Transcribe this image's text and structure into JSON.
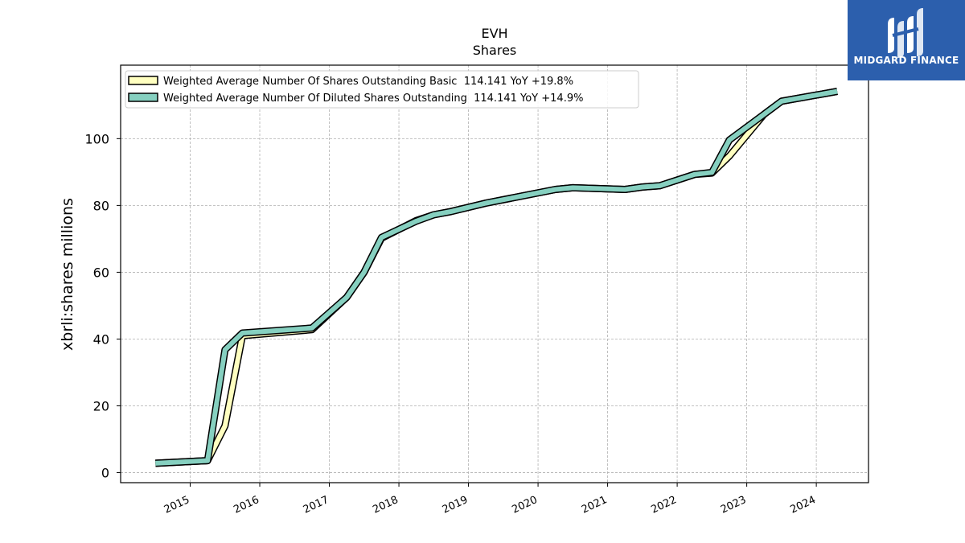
{
  "brand": {
    "name": "MIDGARD FINANCE",
    "bg_color": "#2c5fad"
  },
  "chart_data": {
    "type": "line",
    "title": "EVH",
    "subtitle": "Shares",
    "ylabel": "xbrli:shares millions",
    "xlabel": "",
    "ylim": [
      -3,
      122
    ],
    "xlim": [
      2014.0,
      2024.75
    ],
    "yticks": [
      0,
      20,
      40,
      60,
      80,
      100
    ],
    "xticks": [
      "2015",
      "2016",
      "2017",
      "2018",
      "2019",
      "2020",
      "2021",
      "2022",
      "2023",
      "2024"
    ],
    "grid": true,
    "legend_position": "top-left",
    "series": [
      {
        "name": "Weighted Average Number Of Shares Outstanding Basic  114.141 YoY +19.8%",
        "color": "#ffffc0",
        "points": [
          [
            2014.5,
            2.8
          ],
          [
            2015.25,
            3.6
          ],
          [
            2015.5,
            14
          ],
          [
            2015.75,
            41
          ],
          [
            2016.75,
            42.8
          ],
          [
            2017.25,
            52.5
          ],
          [
            2017.5,
            60
          ],
          [
            2017.75,
            70.2
          ],
          [
            2018.25,
            75.5
          ],
          [
            2018.5,
            77.2
          ],
          [
            2018.75,
            78.2
          ],
          [
            2019.25,
            80.7
          ],
          [
            2020.25,
            84.8
          ],
          [
            2020.5,
            85.3
          ],
          [
            2021.25,
            84.8
          ],
          [
            2021.5,
            85.5
          ],
          [
            2021.75,
            85.9
          ],
          [
            2022.25,
            89.3
          ],
          [
            2022.5,
            89.7
          ],
          [
            2022.75,
            94.8
          ],
          [
            2023.25,
            107.3
          ],
          [
            2023.5,
            111.2
          ],
          [
            2024.3,
            114.141
          ]
        ]
      },
      {
        "name": "Weighted Average Number Of Diluted Shares Outstanding  114.141 YoY +14.9%",
        "color": "#86d0c0",
        "points": [
          [
            2014.5,
            2.8
          ],
          [
            2015.25,
            3.6
          ],
          [
            2015.5,
            36.8
          ],
          [
            2015.75,
            41.8
          ],
          [
            2016.75,
            43.3
          ],
          [
            2017.25,
            52.5
          ],
          [
            2017.5,
            60
          ],
          [
            2017.75,
            70.4
          ],
          [
            2018.25,
            75.3
          ],
          [
            2018.5,
            77.2
          ],
          [
            2018.75,
            78.2
          ],
          [
            2019.25,
            80.7
          ],
          [
            2020.25,
            84.8
          ],
          [
            2020.5,
            85.3
          ],
          [
            2021.25,
            84.8
          ],
          [
            2021.5,
            85.5
          ],
          [
            2021.75,
            85.9
          ],
          [
            2022.25,
            89.3
          ],
          [
            2022.5,
            89.9
          ],
          [
            2022.75,
            99.6
          ],
          [
            2023.25,
            107.3
          ],
          [
            2023.5,
            111.2
          ],
          [
            2024.3,
            114.141
          ]
        ]
      }
    ]
  }
}
